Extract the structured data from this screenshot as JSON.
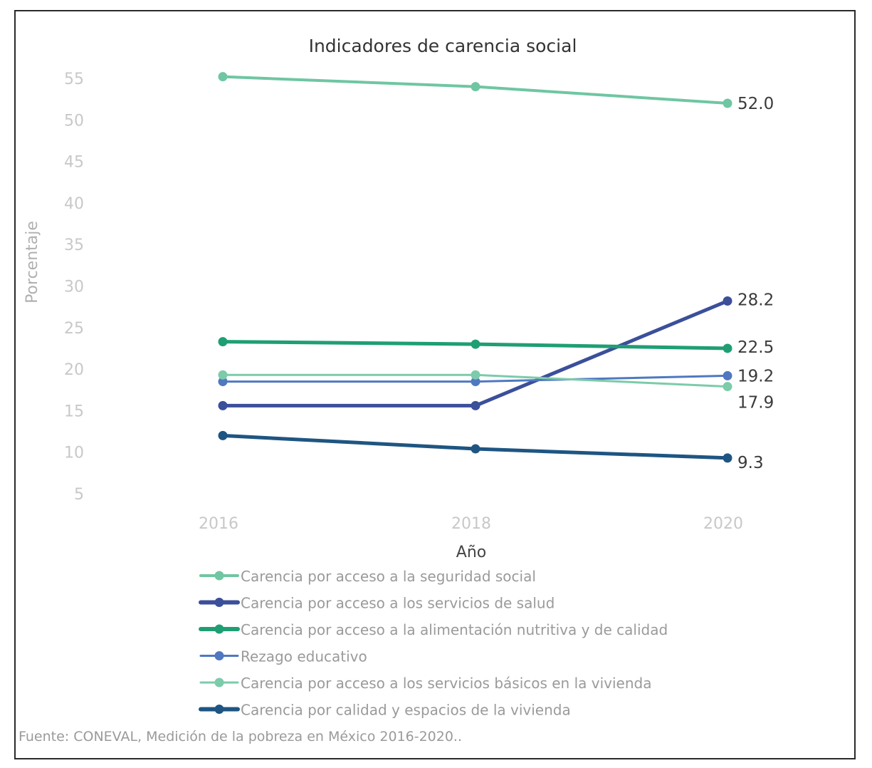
{
  "chart_data": {
    "type": "line",
    "title": "Indicadores de carencia social",
    "xlabel": "Año",
    "ylabel": "Porcentaje",
    "x": [
      "2016",
      "2018",
      "2020"
    ],
    "y_ticks": [
      "5",
      "10",
      "15",
      "20",
      "25",
      "30",
      "35",
      "40",
      "45",
      "50",
      "55"
    ],
    "ylim": [
      5,
      55
    ],
    "grid": false,
    "legend_position": "bottom",
    "series": [
      {
        "name": "Carencia por acceso a la seguridad social",
        "values": [
          55.2,
          54.0,
          52.0
        ],
        "color": "#6fc6a2",
        "end_label": "52.0"
      },
      {
        "name": "Carencia por acceso a los servicios de salud",
        "values": [
          15.6,
          15.6,
          28.2
        ],
        "color": "#3b4f9a",
        "end_label": "28.2"
      },
      {
        "name": "Carencia por acceso a la alimentación nutritiva y de calidad",
        "values": [
          23.3,
          23.0,
          22.5
        ],
        "color": "#1f9e74",
        "end_label": "22.5"
      },
      {
        "name": "Rezago educativo",
        "values": [
          18.5,
          18.5,
          19.2
        ],
        "color": "#4f78c0",
        "end_label": "19.2"
      },
      {
        "name": "Carencia por acceso a los servicios básicos en la vivienda",
        "values": [
          19.3,
          19.3,
          17.9
        ],
        "color": "#7ccbaa",
        "end_label": "17.9"
      },
      {
        "name": "Carencia por calidad y espacios de la vivienda",
        "values": [
          12.0,
          10.4,
          9.3
        ],
        "color": "#1e5582",
        "end_label": "9.3"
      }
    ]
  },
  "source": "Fuente: CONEVAL, Medición de la pobreza en México 2016-2020.."
}
